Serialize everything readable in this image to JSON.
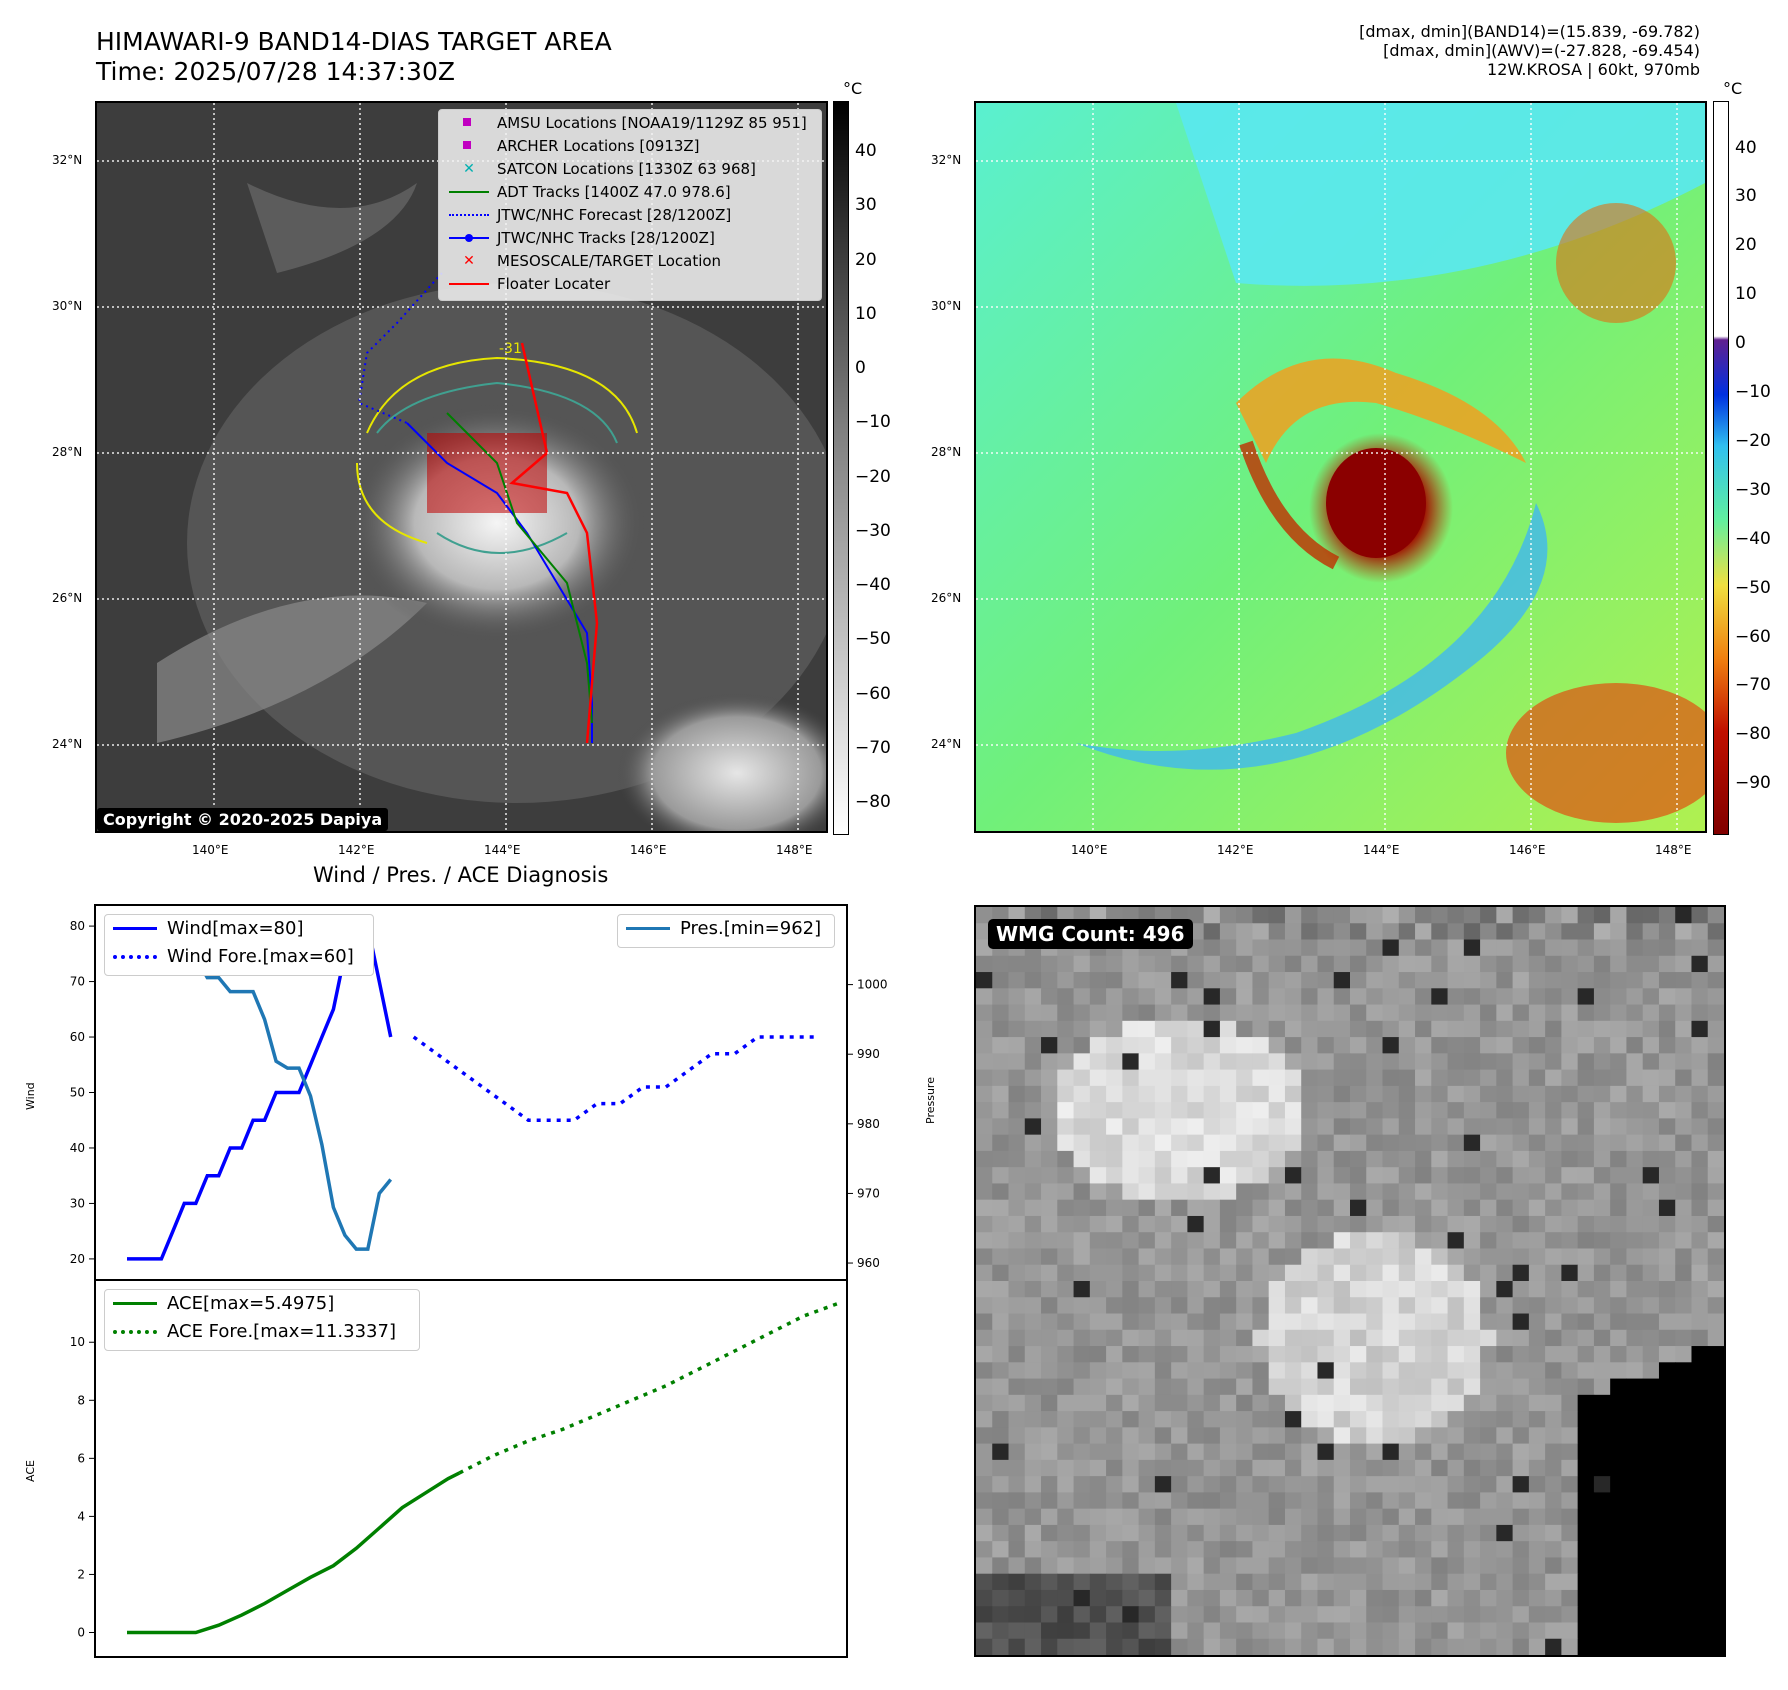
{
  "header": {
    "title_line1": "HIMAWARI-9 BAND14-DIAS TARGET AREA",
    "title_line2": "Time: 2025/07/28 14:37:30Z",
    "info_line1": "[dmax, dmin](BAND14)=(15.839, -69.782)",
    "info_line2": "[dmax, dmin](AWV)=(-27.828, -69.454)",
    "info_line3": "12W.KROSA | 60kt, 970mb"
  },
  "map": {
    "lat_ticks": [
      "32°N",
      "30°N",
      "28°N",
      "26°N",
      "24°N"
    ],
    "lon_ticks": [
      "140°E",
      "142°E",
      "144°E",
      "146°E",
      "148°E"
    ],
    "contour_label": "-31",
    "copyright": "Copyright © 2020-2025 Dapiya"
  },
  "legend": {
    "items": [
      {
        "label": "AMSU Locations [NOAA19/1129Z 85 951]",
        "color": "#c000c0",
        "kind": "square"
      },
      {
        "label": "ARCHER Locations [0913Z]",
        "color": "#c000c0",
        "kind": "square"
      },
      {
        "label": "SATCON Locations [1330Z 63 968]",
        "color": "#00b0b0",
        "kind": "x"
      },
      {
        "label": "ADT Tracks [1400Z 47.0 978.6]",
        "color": "#008000",
        "kind": "line"
      },
      {
        "label": "JTWC/NHC Forecast [28/1200Z]",
        "color": "#0000ff",
        "kind": "dotted"
      },
      {
        "label": "JTWC/NHC Tracks [28/1200Z]",
        "color": "#0000ff",
        "kind": "line-dot"
      },
      {
        "label": "MESOSCALE/TARGET Location",
        "color": "#ff0000",
        "kind": "x"
      },
      {
        "label": "Floater Locater",
        "color": "#ff0000",
        "kind": "line"
      }
    ]
  },
  "colorbar_left": {
    "unit": "°C",
    "ticks": [
      "40",
      "30",
      "20",
      "10",
      "0",
      "−10",
      "−20",
      "−30",
      "−40",
      "−50",
      "−60",
      "−70",
      "−80"
    ]
  },
  "colorbar_right": {
    "unit": "°C",
    "ticks": [
      "40",
      "30",
      "20",
      "10",
      "0",
      "−10",
      "−20",
      "−30",
      "−40",
      "−50",
      "−60",
      "−70",
      "−80",
      "−90"
    ]
  },
  "wmg": {
    "badge": "WMG Count: 496"
  },
  "chart_data": [
    {
      "type": "line",
      "title": "Wind / Pres. / ACE Diagnosis",
      "ylabel": "Wind",
      "ylabel_right": "Pressure",
      "ylim": [
        18,
        82
      ],
      "ylim_right": [
        959,
        1010
      ],
      "yticks": [
        "80",
        "70",
        "60",
        "50",
        "40",
        "30",
        "20"
      ],
      "yticks_right": [
        "1000",
        "990",
        "980",
        "970",
        "960"
      ],
      "series": [
        {
          "name": "Wind[max=80]",
          "color": "#0000ff",
          "style": "solid",
          "x": [
            0,
            1,
            2,
            3,
            4,
            5,
            6,
            7,
            8,
            9,
            10,
            11,
            12,
            13,
            14,
            15,
            16,
            17,
            18,
            19,
            20,
            21,
            22,
            23,
            24,
            25
          ],
          "values": [
            20,
            20,
            20,
            20,
            25,
            30,
            30,
            35,
            35,
            40,
            40,
            45,
            45,
            50,
            50,
            50,
            55,
            60,
            65,
            75,
            80,
            80,
            70,
            60,
            null,
            null
          ]
        },
        {
          "name": "Wind Fore.[max=60]",
          "color": "#0000ff",
          "style": "dotted",
          "x": [
            25,
            27,
            29,
            31,
            33,
            35,
            37,
            39,
            41,
            43,
            45,
            47,
            49,
            51,
            53,
            55,
            57,
            59,
            60
          ],
          "values": [
            60,
            57,
            54,
            51,
            48,
            45,
            45,
            45,
            48,
            48,
            51,
            51,
            54,
            57,
            57,
            60,
            60,
            60,
            60
          ]
        },
        {
          "name": "Pres.[min=962]",
          "color": "#1f77b4",
          "style": "solid",
          "x": [
            0,
            1,
            2,
            3,
            4,
            5,
            6,
            7,
            8,
            9,
            10,
            11,
            12,
            13,
            14,
            15,
            16,
            17,
            18,
            19,
            20,
            21,
            22,
            23
          ],
          "values": [
            1008,
            1008,
            1008,
            1005,
            1005,
            1004,
            1004,
            1001,
            1001,
            999,
            999,
            999,
            995,
            989,
            988,
            988,
            984,
            977,
            968,
            964,
            962,
            962,
            970,
            972
          ]
        }
      ]
    },
    {
      "type": "line",
      "ylabel": "ACE",
      "ylim": [
        -0.5,
        11.8
      ],
      "yticks": [
        "10",
        "8",
        "6",
        "4",
        "2",
        "0"
      ],
      "series": [
        {
          "name": "ACE[max=5.4975]",
          "color": "#008000",
          "style": "solid",
          "x": [
            0,
            6,
            8,
            10,
            12,
            14,
            16,
            18,
            20,
            22,
            24,
            26,
            28,
            29
          ],
          "values": [
            0,
            0,
            0.25,
            0.6,
            1.0,
            1.45,
            1.9,
            2.3,
            2.9,
            3.6,
            4.3,
            4.8,
            5.3,
            5.4975
          ]
        },
        {
          "name": "ACE Fore.[max=11.3337]",
          "color": "#008000",
          "style": "dotted",
          "x": [
            29,
            32,
            35,
            38,
            41,
            44,
            47,
            50,
            53,
            56,
            59,
            62
          ],
          "values": [
            5.5,
            6.1,
            6.6,
            7.0,
            7.5,
            8.0,
            8.5,
            9.1,
            9.7,
            10.3,
            10.9,
            11.3337
          ]
        }
      ]
    }
  ]
}
